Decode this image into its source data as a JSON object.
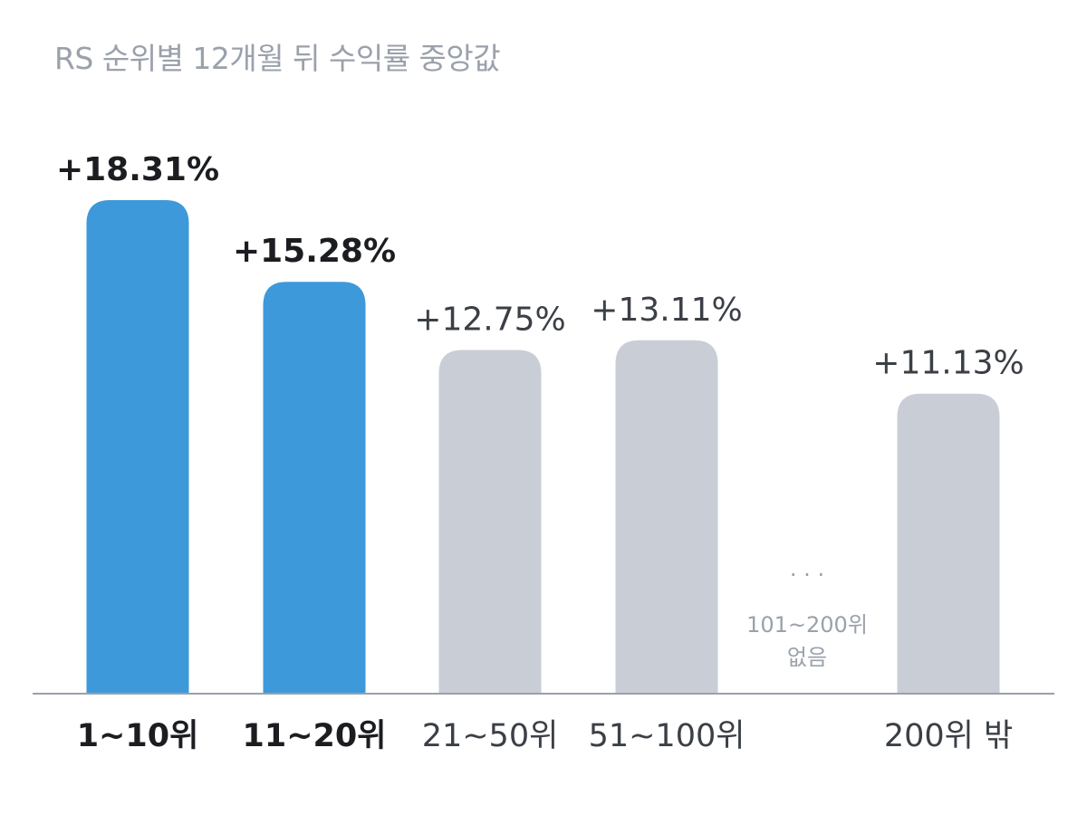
{
  "chart_data": {
    "type": "bar",
    "title": "RS 순위별 12개월 뒤 수익률 중앙값",
    "categories": [
      "1~10위",
      "11~20위",
      "21~50위",
      "51~100위",
      "",
      "200위 밖"
    ],
    "values": [
      18.31,
      15.28,
      12.75,
      13.11,
      null,
      11.13
    ],
    "value_labels": [
      "+18.31%",
      "+15.28%",
      "+12.75%",
      "+13.11%",
      "",
      "+11.13%"
    ],
    "highlighted": [
      true,
      true,
      false,
      false,
      false,
      false
    ],
    "gap_marker": "· · ·",
    "gap_note": [
      "101~200위",
      "없음"
    ],
    "colors": {
      "highlight": "#3d99d9",
      "normal": "#c9ced6",
      "axis": "#9aa1ab"
    }
  }
}
